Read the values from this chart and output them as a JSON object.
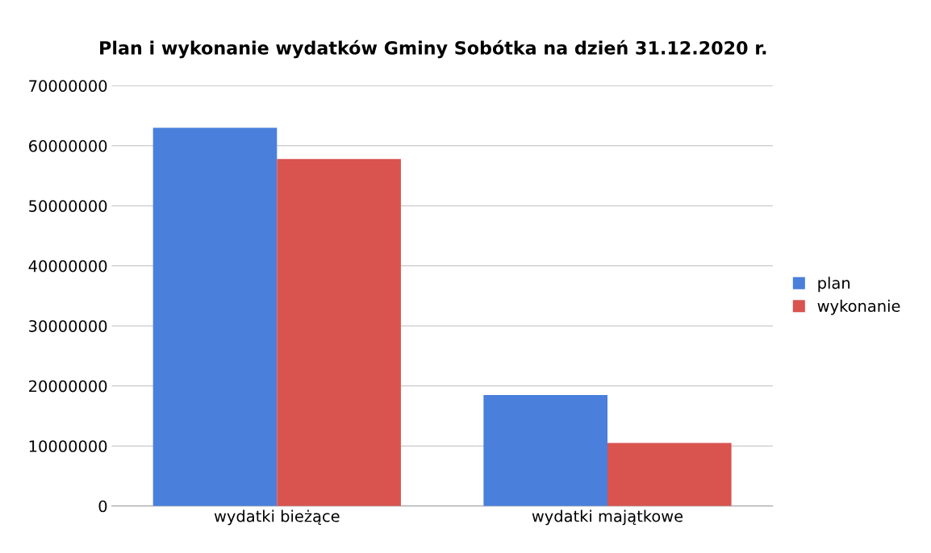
{
  "chart_data": {
    "type": "bar",
    "title": "Plan i wykonanie wydatków Gminy Sobótka na dzień 31.12.2020 r.",
    "categories": [
      "wydatki bieżące",
      "wydatki majątkowe"
    ],
    "series": [
      {
        "name": "plan",
        "color": "#4a7fdc",
        "values": [
          63000000,
          18500000
        ]
      },
      {
        "name": "wykonanie",
        "color": "#d9534f",
        "values": [
          57800000,
          10500000
        ]
      }
    ],
    "ylim": [
      0,
      70000000
    ],
    "yticks": [
      0,
      10000000,
      20000000,
      30000000,
      40000000,
      50000000,
      60000000,
      70000000
    ],
    "grid": "y",
    "legend": "right"
  }
}
